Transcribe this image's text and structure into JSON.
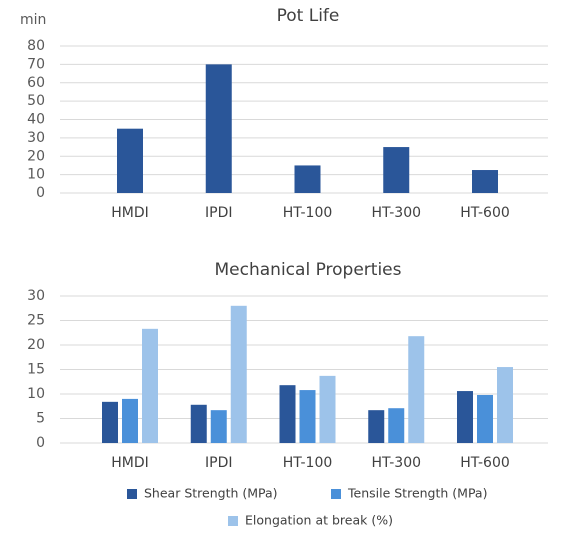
{
  "chart_data": [
    {
      "type": "bar",
      "title": "Pot Life",
      "y_label": "min",
      "categories": [
        "HMDI",
        "IPDI",
        "HT-100",
        "HT-300",
        "HT-600"
      ],
      "values": [
        35,
        70,
        15,
        25,
        12.5
      ],
      "color": "#2a5699",
      "ylim": [
        0,
        80
      ],
      "yticks": [
        0,
        10,
        20,
        30,
        40,
        50,
        60,
        70,
        80
      ],
      "grid": true
    },
    {
      "type": "grouped-bar",
      "title": "Mechanical Properties",
      "categories": [
        "HMDI",
        "IPDI",
        "HT-100",
        "HT-300",
        "HT-600"
      ],
      "series": [
        {
          "name": "Shear Strength (MPa)",
          "color": "#2a5699",
          "values": [
            8.4,
            7.8,
            11.8,
            6.7,
            10.6
          ]
        },
        {
          "name": "Tensile Strength (MPa)",
          "color": "#4a90d9",
          "values": [
            9.0,
            6.7,
            10.8,
            7.1,
            9.8
          ]
        },
        {
          "name": "Elongation at break (%)",
          "color": "#9dc3ea",
          "values": [
            23.3,
            28,
            13.7,
            21.8,
            15.5
          ]
        }
      ],
      "ylim": [
        0,
        30
      ],
      "yticks": [
        0,
        5,
        10,
        15,
        20,
        25,
        30
      ],
      "grid": true,
      "legend": "bottom"
    }
  ]
}
